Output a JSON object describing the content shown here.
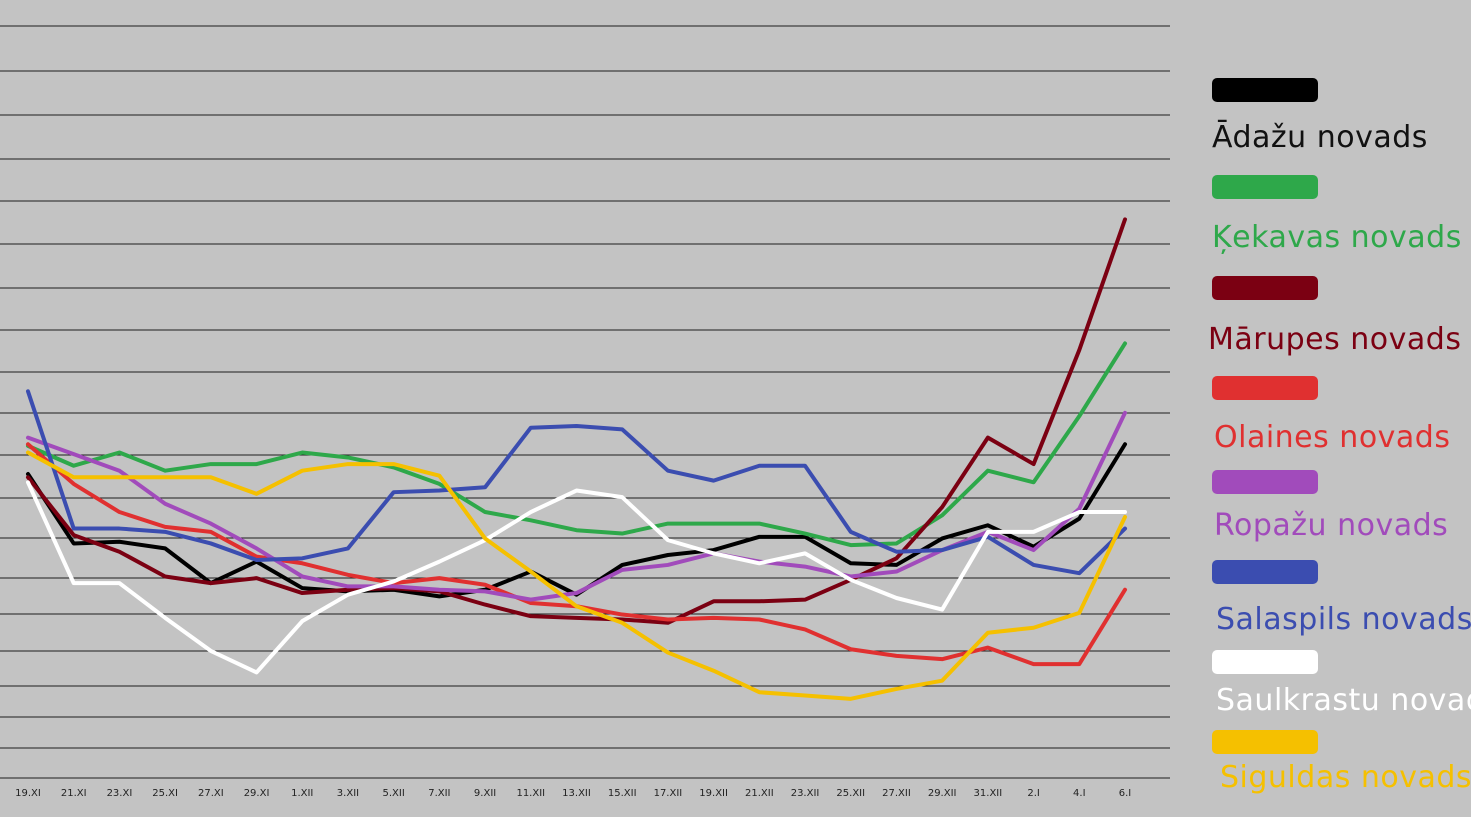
{
  "chart_data": {
    "type": "line",
    "title": "",
    "xlabel": "",
    "ylabel": "",
    "grid": true,
    "legend_position": "right",
    "x": [
      "19.XI",
      "21.XI",
      "23.XI",
      "25.XI",
      "27.XI",
      "29.XI",
      "1.XII",
      "3.XII",
      "5.XII",
      "7.XII",
      "9.XII",
      "11.XII",
      "13.XII",
      "15.XII",
      "17.XII",
      "19.XII",
      "21.XII",
      "23.XII",
      "25.XII",
      "27.XII",
      "29.XII",
      "31.XII",
      "2.I",
      "4.I",
      "6.I"
    ],
    "series": [
      {
        "name": "Ādažu novads",
        "color": "#000000",
        "values": [
          150,
          108,
          109,
          105,
          84,
          97,
          81,
          79,
          80,
          76,
          80,
          91,
          77,
          95,
          101,
          104,
          112,
          112,
          96,
          95,
          111,
          119,
          106,
          123,
          168
        ]
      },
      {
        "name": "Ķekavas novads",
        "color": "#2ea84a",
        "values": [
          167,
          155,
          163,
          152,
          156,
          156,
          163,
          160,
          154,
          144,
          127,
          122,
          116,
          114,
          120,
          120,
          120,
          114,
          107,
          108,
          125,
          152,
          145,
          185,
          229
        ]
      },
      {
        "name": "Mārupes novads",
        "color": "#7b0012",
        "values": [
          148,
          113,
          103,
          88,
          84,
          87,
          78,
          80,
          81,
          79,
          71,
          64,
          63,
          62,
          60,
          73,
          73,
          74,
          86,
          99,
          130,
          172,
          156,
          225,
          304
        ]
      },
      {
        "name": "Olaines novads",
        "color": "#e03030",
        "values": [
          168,
          144,
          127,
          118,
          115,
          100,
          96,
          89,
          84,
          87,
          83,
          72,
          70,
          65,
          62,
          63,
          62,
          56,
          44,
          40,
          38,
          45,
          35,
          35,
          80
        ]
      },
      {
        "name": "Ropažu novads",
        "color": "#a14bbb",
        "values": [
          172,
          162,
          152,
          132,
          120,
          105,
          88,
          82,
          82,
          80,
          79,
          74,
          78,
          92,
          95,
          102,
          97,
          94,
          88,
          91,
          104,
          115,
          104,
          129,
          187
        ]
      },
      {
        "name": "Salaspils novads",
        "color": "#3b4db0",
        "values": [
          200,
          117,
          117,
          115,
          108,
          98,
          99,
          105,
          139,
          140,
          142,
          178,
          179,
          177,
          152,
          146,
          155,
          155,
          115,
          103,
          104,
          112,
          95,
          90,
          117
        ]
      },
      {
        "name": "Saulkrastu novads",
        "color": "#ffffff",
        "values": [
          145,
          84,
          84,
          63,
          43,
          30,
          61,
          77,
          85,
          97,
          110,
          127,
          140,
          136,
          110,
          102,
          96,
          102,
          86,
          75,
          68,
          115,
          115,
          127,
          127
        ]
      },
      {
        "name": "Siguldas novads",
        "color": "#f5c000",
        "values": [
          163,
          148,
          148,
          148,
          148,
          138,
          152,
          156,
          156,
          149,
          111,
          91,
          70,
          60,
          42,
          31,
          18,
          16,
          14,
          20,
          25,
          54,
          57,
          66,
          124
        ]
      }
    ]
  }
}
